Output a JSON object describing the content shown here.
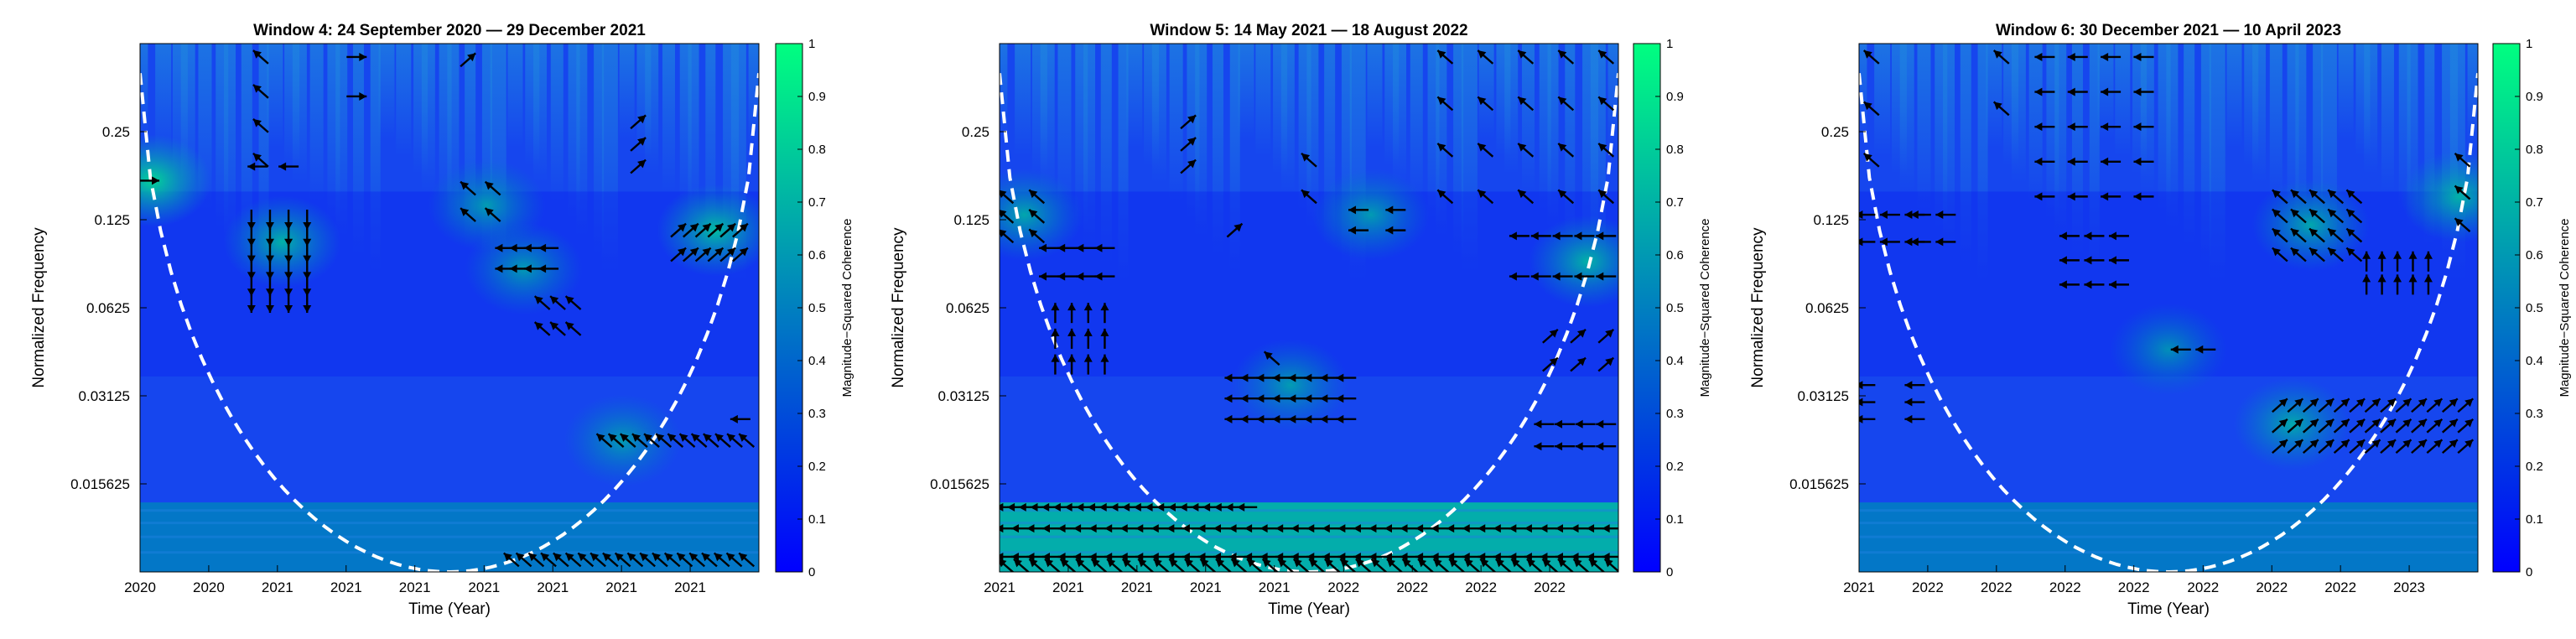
{
  "colors": {
    "field_low": "#0a1df2",
    "field_base": "#1646ee",
    "field_mid": "#1e82e0",
    "field_high": "#16c9a0",
    "colorbar_top": "#00ff80",
    "colorbar_bottom": "#0000ff",
    "coi_line": "#ffffff",
    "arrows": "#000000"
  },
  "chart_data": [
    {
      "type": "heatmap",
      "title": "Window 4: 24 September 2020 — 29 December 2021",
      "xlabel": "Time (Year)",
      "ylabel": "Normalized Frequency",
      "yscale": "log2",
      "ylim": [
        0.0078125,
        0.5
      ],
      "yticks": [
        0.015625,
        0.03125,
        0.0625,
        0.125,
        0.25
      ],
      "ytick_labels": [
        "0.015625",
        "0.03125",
        "0.0625",
        "0.125",
        "0.25"
      ],
      "xlim": [
        0,
        1
      ],
      "xticks": [
        0,
        0.111,
        0.222,
        0.333,
        0.444,
        0.556,
        0.667,
        0.778,
        0.889
      ],
      "xtick_labels": [
        "2020",
        "2020",
        "2021",
        "2021",
        "2021",
        "2021",
        "2021",
        "2021",
        "2021"
      ],
      "colorbar": {
        "label": "Magnitude−Squared Coherence",
        "range": [
          0,
          1
        ],
        "ticks": [
          "0",
          "0.1",
          "0.2",
          "0.3",
          "0.4",
          "0.5",
          "0.6",
          "0.7",
          "0.8",
          "0.9",
          "1"
        ]
      },
      "cone_of_influence": "dashed white parabola, minimum at x = 0.5",
      "low_band_coherence": 0.5,
      "high_coherence_regions": [
        {
          "x": 0.23,
          "f": 0.105,
          "coherence": 0.55
        },
        {
          "x": 0.93,
          "f": 0.115,
          "coherence": 0.6
        },
        {
          "x": 0.02,
          "f": 0.17,
          "coherence": 0.7
        },
        {
          "x": 0.56,
          "f": 0.14,
          "coherence": 0.45
        },
        {
          "x": 0.78,
          "f": 0.022,
          "coherence": 0.45
        },
        {
          "x": 0.62,
          "f": 0.085,
          "coherence": 0.45
        }
      ],
      "phase_arrows": [
        {
          "x": [
            0.18,
            0.27
          ],
          "f": [
            0.065,
            0.125
          ],
          "direction": "down",
          "rows": 6,
          "cols": 4
        },
        {
          "x": [
            0.18,
            0.21
          ],
          "f": [
            0.2,
            0.45
          ],
          "direction": "up-left",
          "rows": 4,
          "cols": 1
        },
        {
          "x": [
            0.19,
            0.24
          ],
          "f": [
            0.19,
            0.19
          ],
          "direction": "left",
          "rows": 1,
          "cols": 2
        },
        {
          "x": [
            0.34,
            0.36
          ],
          "f": [
            0.33,
            0.45
          ],
          "direction": "right",
          "rows": 2,
          "cols": 1
        },
        {
          "x": [
            0.53,
            0.57
          ],
          "f": [
            0.13,
            0.16
          ],
          "direction": "up-left",
          "rows": 2,
          "cols": 2
        },
        {
          "x": [
            0.59,
            0.66
          ],
          "f": [
            0.085,
            0.1
          ],
          "direction": "left",
          "rows": 2,
          "cols": 4
        },
        {
          "x": [
            0.65,
            0.7
          ],
          "f": [
            0.053,
            0.065
          ],
          "direction": "up-left",
          "rows": 2,
          "cols": 3
        },
        {
          "x": [
            0.8,
            0.81
          ],
          "f": [
            0.19,
            0.27
          ],
          "direction": "up-right",
          "rows": 3,
          "cols": 1
        },
        {
          "x": [
            0.87,
            0.97
          ],
          "f": [
            0.095,
            0.115
          ],
          "direction": "up-right",
          "rows": 2,
          "cols": 6
        },
        {
          "x": [
            0.75,
            0.98
          ],
          "f": [
            0.022,
            0.022
          ],
          "direction": "up-left",
          "rows": 1,
          "cols": 13
        },
        {
          "x": [
            0.96,
            0.98
          ],
          "f": [
            0.026,
            0.026
          ],
          "direction": "left",
          "rows": 1,
          "cols": 1
        },
        {
          "x": [
            0.6,
            0.98
          ],
          "f": [
            0.0086,
            0.0086
          ],
          "direction": "up-left",
          "rows": 1,
          "cols": 20
        },
        {
          "x": [
            0.01,
            0.02
          ],
          "f": [
            0.17,
            0.17
          ],
          "direction": "right",
          "rows": 1,
          "cols": 1
        },
        {
          "x": [
            0.52,
            0.54
          ],
          "f": [
            0.44,
            0.44
          ],
          "direction": "up-right",
          "rows": 1,
          "cols": 1
        }
      ]
    },
    {
      "type": "heatmap",
      "title": "Window 5: 14 May 2021 — 18 August 2022",
      "xlabel": "Time (Year)",
      "ylabel": "Normalized Frequency",
      "yscale": "log2",
      "ylim": [
        0.0078125,
        0.5
      ],
      "yticks": [
        0.015625,
        0.03125,
        0.0625,
        0.125,
        0.25
      ],
      "ytick_labels": [
        "0.015625",
        "0.03125",
        "0.0625",
        "0.125",
        "0.25"
      ],
      "xlim": [
        0,
        1
      ],
      "xticks": [
        0,
        0.111,
        0.222,
        0.333,
        0.444,
        0.556,
        0.667,
        0.778,
        0.889
      ],
      "xtick_labels": [
        "2021",
        "2021",
        "2021",
        "2021",
        "2021",
        "2022",
        "2022",
        "2022",
        "2022"
      ],
      "colorbar": {
        "label": "Magnitude−Squared Coherence",
        "range": [
          0,
          1
        ],
        "ticks": [
          "0",
          "0.1",
          "0.2",
          "0.3",
          "0.4",
          "0.5",
          "0.6",
          "0.7",
          "0.8",
          "0.9",
          "1"
        ]
      },
      "cone_of_influence": "dashed white parabola, minimum at x = 0.5",
      "low_band_coherence": 0.75,
      "high_coherence_regions": [
        {
          "x": 0.95,
          "f": 0.09,
          "coherence": 0.55
        },
        {
          "x": 0.04,
          "f": 0.13,
          "coherence": 0.5
        },
        {
          "x": 0.47,
          "f": 0.034,
          "coherence": 0.45
        },
        {
          "x": 0.6,
          "f": 0.13,
          "coherence": 0.45
        }
      ],
      "phase_arrows": [
        {
          "x": [
            0.01,
            0.4
          ],
          "f": [
            0.013,
            0.013
          ],
          "direction": "left",
          "rows": 1,
          "cols": 22
        },
        {
          "x": [
            0.01,
            0.99
          ],
          "f": [
            0.0088,
            0.011
          ],
          "direction": "left",
          "rows": 2,
          "cols": 40
        },
        {
          "x": [
            0.01,
            0.99
          ],
          "f": [
            0.0082,
            0.0082
          ],
          "direction": "up-left",
          "rows": 1,
          "cols": 40
        },
        {
          "x": [
            0.38,
            0.56
          ],
          "f": [
            0.026,
            0.036
          ],
          "direction": "left",
          "rows": 3,
          "cols": 8
        },
        {
          "x": [
            0.43,
            0.45
          ],
          "f": [
            0.042,
            0.042
          ],
          "direction": "up-left",
          "rows": 1,
          "cols": 1
        },
        {
          "x": [
            0.01,
            0.06
          ],
          "f": [
            0.11,
            0.15
          ],
          "direction": "up-left",
          "rows": 3,
          "cols": 2
        },
        {
          "x": [
            0.08,
            0.17
          ],
          "f": [
            0.08,
            0.1
          ],
          "direction": "left",
          "rows": 2,
          "cols": 4
        },
        {
          "x": [
            0.09,
            0.17
          ],
          "f": [
            0.04,
            0.06
          ],
          "direction": "up",
          "rows": 3,
          "cols": 4
        },
        {
          "x": [
            0.3,
            0.31
          ],
          "f": [
            0.19,
            0.27
          ],
          "direction": "up-right",
          "rows": 3,
          "cols": 1
        },
        {
          "x": [
            0.37,
            0.39
          ],
          "f": [
            0.115,
            0.115
          ],
          "direction": "up-right",
          "rows": 1,
          "cols": 1
        },
        {
          "x": [
            0.49,
            0.51
          ],
          "f": [
            0.15,
            0.2
          ],
          "direction": "up-left",
          "rows": 2,
          "cols": 1
        },
        {
          "x": [
            0.58,
            0.64
          ],
          "f": [
            0.115,
            0.135
          ],
          "direction": "left",
          "rows": 2,
          "cols": 2
        },
        {
          "x": [
            0.72,
            0.98
          ],
          "f": [
            0.15,
            0.45
          ],
          "direction": "up-left",
          "rows": 4,
          "cols": 5
        },
        {
          "x": [
            0.84,
            0.98
          ],
          "f": [
            0.08,
            0.11
          ],
          "direction": "left",
          "rows": 2,
          "cols": 5
        },
        {
          "x": [
            0.89,
            0.98
          ],
          "f": [
            0.04,
            0.05
          ],
          "direction": "up-right",
          "rows": 2,
          "cols": 3
        },
        {
          "x": [
            0.88,
            0.98
          ],
          "f": [
            0.021,
            0.025
          ],
          "direction": "left",
          "rows": 2,
          "cols": 4
        }
      ]
    },
    {
      "type": "heatmap",
      "title": "Window 6: 30 December 2021 — 10 April 2023",
      "xlabel": "Time (Year)",
      "ylabel": "Normalized Frequency",
      "yscale": "log2",
      "ylim": [
        0.0078125,
        0.5
      ],
      "yticks": [
        0.015625,
        0.03125,
        0.0625,
        0.125,
        0.25
      ],
      "ytick_labels": [
        "0.015625",
        "0.03125",
        "0.0625",
        "0.125",
        "0.25"
      ],
      "xlim": [
        0,
        1
      ],
      "xticks": [
        0,
        0.111,
        0.222,
        0.333,
        0.444,
        0.556,
        0.667,
        0.778,
        0.889
      ],
      "xtick_labels": [
        "2021",
        "2022",
        "2022",
        "2022",
        "2022",
        "2022",
        "2022",
        "2022",
        "2023"
      ],
      "colorbar": {
        "label": "Magnitude−Squared Coherence",
        "range": [
          0,
          1
        ],
        "ticks": [
          "0",
          "0.1",
          "0.2",
          "0.3",
          "0.4",
          "0.5",
          "0.6",
          "0.7",
          "0.8",
          "0.9",
          "1"
        ]
      },
      "cone_of_influence": "dashed white parabola, minimum at x = 0.5",
      "low_band_coherence": 0.5,
      "high_coherence_regions": [
        {
          "x": 0.7,
          "f": 0.025,
          "coherence": 0.5
        },
        {
          "x": 0.73,
          "f": 0.12,
          "coherence": 0.5
        },
        {
          "x": 0.97,
          "f": 0.15,
          "coherence": 0.55
        },
        {
          "x": 0.5,
          "f": 0.045,
          "coherence": 0.4
        }
      ],
      "phase_arrows": [
        {
          "x": [
            0.01,
            0.03
          ],
          "f": [
            0.2,
            0.45
          ],
          "direction": "up-left",
          "rows": 3,
          "cols": 1
        },
        {
          "x": [
            0.01,
            0.09
          ],
          "f": [
            0.105,
            0.13
          ],
          "direction": "left",
          "rows": 2,
          "cols": 3
        },
        {
          "x": [
            0.1,
            0.14
          ],
          "f": [
            0.105,
            0.13
          ],
          "direction": "left",
          "rows": 2,
          "cols": 2
        },
        {
          "x": [
            0.01,
            0.09
          ],
          "f": [
            0.026,
            0.034
          ],
          "direction": "left",
          "rows": 3,
          "cols": 2
        },
        {
          "x": [
            0.22,
            0.24
          ],
          "f": [
            0.3,
            0.45
          ],
          "direction": "up-left",
          "rows": 2,
          "cols": 1
        },
        {
          "x": [
            0.3,
            0.46
          ],
          "f": [
            0.15,
            0.45
          ],
          "direction": "left",
          "rows": 5,
          "cols": 4
        },
        {
          "x": [
            0.34,
            0.42
          ],
          "f": [
            0.075,
            0.11
          ],
          "direction": "left",
          "rows": 3,
          "cols": 3
        },
        {
          "x": [
            0.52,
            0.56
          ],
          "f": [
            0.045,
            0.045
          ],
          "direction": "left",
          "rows": 1,
          "cols": 2
        },
        {
          "x": [
            0.68,
            0.8
          ],
          "f": [
            0.095,
            0.15
          ],
          "direction": "up-left",
          "rows": 4,
          "cols": 5
        },
        {
          "x": [
            0.82,
            0.92
          ],
          "f": [
            0.075,
            0.09
          ],
          "direction": "up",
          "rows": 2,
          "cols": 5
        },
        {
          "x": [
            0.96,
            0.99
          ],
          "f": [
            0.12,
            0.2
          ],
          "direction": "up-left",
          "rows": 3,
          "cols": 1
        },
        {
          "x": [
            0.68,
            0.98
          ],
          "f": [
            0.021,
            0.029
          ],
          "direction": "up-right",
          "rows": 3,
          "cols": 13
        }
      ]
    }
  ]
}
